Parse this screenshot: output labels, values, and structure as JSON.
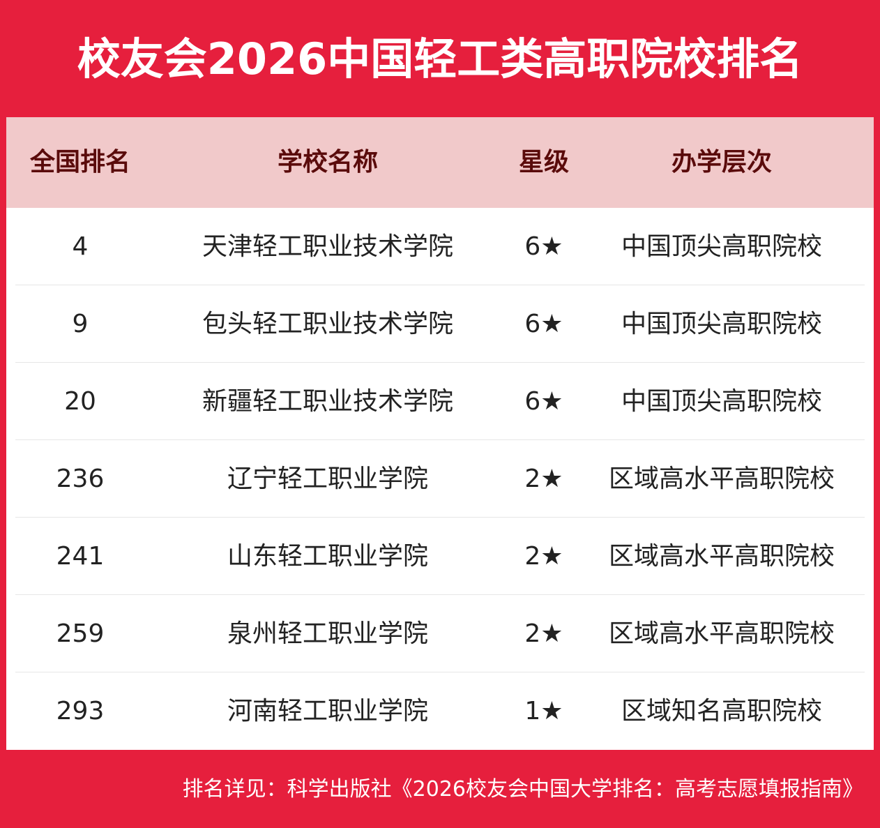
{
  "header": {
    "title": "校友会2026中国轻工类高职院校排名"
  },
  "table": {
    "columns": [
      "全国排名",
      "学校名称",
      "星级",
      "办学层次"
    ],
    "rows": [
      [
        4,
        "天津轻工职业技术学院",
        "6★",
        "中国顶尖高职院校"
      ],
      [
        9,
        "包头轻工职业技术学院",
        "6★",
        "中国顶尖高职院校"
      ],
      [
        20,
        "新疆轻工职业技术学院",
        "6★",
        "中国顶尖高职院校"
      ],
      [
        236,
        "辽宁轻工职业学院",
        "2★",
        "区域高水平高职院校"
      ],
      [
        241,
        "山东轻工职业学院",
        "2★",
        "区域高水平高职院校"
      ],
      [
        259,
        "泉州轻工职业学院",
        "2★",
        "区域高水平高职院校"
      ],
      [
        293,
        "河南轻工职业学院",
        "1★",
        "区域知名高职院校"
      ]
    ]
  },
  "footer": {
    "note": "排名详见：科学出版社《2026校友会中国大学排名：高考志愿填报指南》"
  }
}
